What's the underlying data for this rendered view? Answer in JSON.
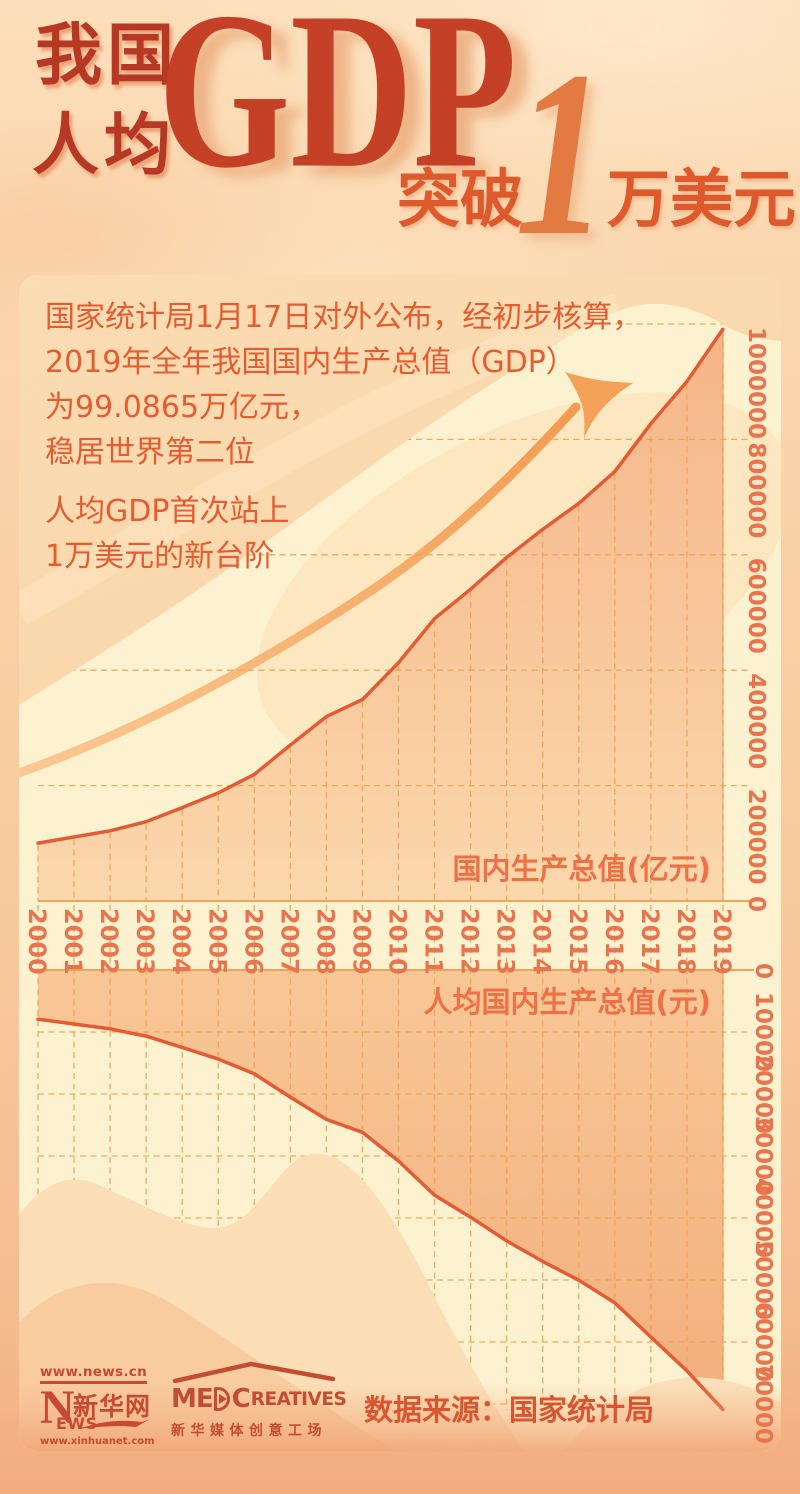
{
  "title": {
    "prefix_line1": "我国",
    "prefix_line2": "人均",
    "gdp": "GDP",
    "tupo": "突破",
    "one": "1",
    "wanmeiyuan": "万美元"
  },
  "intro": {
    "lines": [
      "国家统计局1月17日对外公布，经初步核算，",
      "2019年全年我国国内生产总值（GDP）",
      "为99.0865万亿元，",
      "稳居世界第二位",
      "人均GDP首次站上",
      "1万美元的新台阶"
    ]
  },
  "chart_data": [
    {
      "type": "area",
      "title": "国内生产总值(亿元)",
      "x": [
        "2000",
        "2001",
        "2002",
        "2003",
        "2004",
        "2005",
        "2006",
        "2007",
        "2008",
        "2009",
        "2010",
        "2011",
        "2012",
        "2013",
        "2014",
        "2015",
        "2016",
        "2017",
        "2018",
        "2019"
      ],
      "values": [
        100280,
        110863,
        121717,
        137422,
        161840,
        187319,
        219439,
        270232,
        319516,
        349081,
        413030,
        489301,
        540367,
        595244,
        643974,
        689052,
        744127,
        827122,
        900309,
        990865
      ],
      "ylim": [
        0,
        1000000
      ],
      "yticks": [
        0,
        200000,
        400000,
        600000,
        800000,
        1000000
      ],
      "ylabel_side": "right",
      "grid": true,
      "orientation": "up"
    },
    {
      "type": "area",
      "title": "人均国内生产总值(元)",
      "x": [
        "2000",
        "2001",
        "2002",
        "2003",
        "2004",
        "2005",
        "2006",
        "2007",
        "2008",
        "2009",
        "2010",
        "2011",
        "2012",
        "2013",
        "2014",
        "2015",
        "2016",
        "2017",
        "2018",
        "2019"
      ],
      "values": [
        7942,
        8717,
        9506,
        10666,
        12487,
        14368,
        16738,
        20494,
        24100,
        26180,
        30808,
        36302,
        39874,
        43684,
        47005,
        50028,
        53680,
        59201,
        64644,
        70892
      ],
      "ylim": [
        0,
        70000
      ],
      "yticks": [
        0,
        10000,
        20000,
        30000,
        40000,
        50000,
        60000,
        70000
      ],
      "ylabel_side": "right",
      "grid": true,
      "orientation": "down"
    }
  ],
  "footer": {
    "news_cn": "www.news.cn",
    "brand_n": "N",
    "brand_rest": "EWS",
    "brand_cn": "新华网",
    "xinhuanet": "www.xinhuanet.com",
    "mc_me": "ME",
    "mc_c": "C",
    "mc_rest": "REATIVES",
    "mc_cn": "新华媒体创意工场",
    "source": "数据来源：国家统计局"
  },
  "colors": {
    "line_red": "#e2572f",
    "grid_orange": "#eda14f",
    "axis_orange": "#e9a45b",
    "tick_text": "#e7714b",
    "caption_text": "#ed6d43",
    "body_text": "#e4582c",
    "title_dark_red": "#b43320",
    "title_gdp_red": "#c23b21",
    "title_orange": "#dd5527",
    "big_one_orange": "#e1773e",
    "arrow_orange": "#f5a75c",
    "cream": "#fdf3d1",
    "logo_red": "#c5452c",
    "source_red": "#d8512d"
  }
}
